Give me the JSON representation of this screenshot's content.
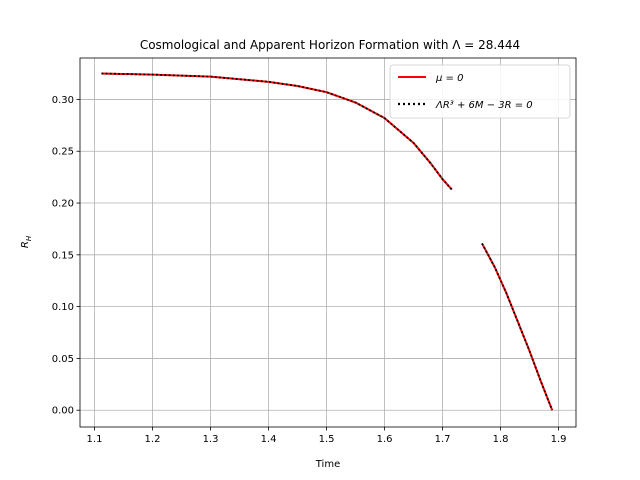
{
  "chart_data": {
    "type": "line",
    "title": "Cosmological and Apparent Horizon Formation with Λ = 28.444",
    "xlabel": "Time",
    "ylabel": "R_H",
    "xlim": [
      1.075,
      1.93
    ],
    "ylim": [
      -0.0162,
      0.34
    ],
    "xticks": [
      "1.1",
      "1.2",
      "1.3",
      "1.4",
      "1.5",
      "1.6",
      "1.7",
      "1.8",
      "1.9"
    ],
    "yticks": [
      "0.00",
      "0.05",
      "0.10",
      "0.15",
      "0.20",
      "0.25",
      "0.30"
    ],
    "grid": true,
    "legend_position": "top-right",
    "series": [
      {
        "name": "μ = 0",
        "color": "#ff0000",
        "style": "solid",
        "segments": [
          {
            "x": [
              1.112,
              1.2,
              1.3,
              1.4,
              1.45,
              1.5,
              1.55,
              1.6,
              1.65,
              1.68,
              1.7,
              1.716
            ],
            "y": [
              0.325,
              0.324,
              0.322,
              0.317,
              0.313,
              0.307,
              0.297,
              0.282,
              0.258,
              0.238,
              0.223,
              0.213
            ]
          },
          {
            "x": [
              1.768,
              1.79,
              1.81,
              1.83,
              1.85,
              1.87,
              1.889
            ],
            "y": [
              0.161,
              0.138,
              0.113,
              0.085,
              0.057,
              0.027,
              0.0
            ]
          }
        ]
      },
      {
        "name": "ΛR³ + 6M − 3R = 0",
        "color": "#000000",
        "style": "dotted",
        "segments": [
          {
            "x": [
              1.112,
              1.2,
              1.3,
              1.4,
              1.45,
              1.5,
              1.55,
              1.6,
              1.65,
              1.68,
              1.7,
              1.716
            ],
            "y": [
              0.325,
              0.324,
              0.322,
              0.317,
              0.313,
              0.307,
              0.297,
              0.282,
              0.258,
              0.238,
              0.223,
              0.213
            ]
          },
          {
            "x": [
              1.768,
              1.79,
              1.81,
              1.83,
              1.85,
              1.87,
              1.889
            ],
            "y": [
              0.161,
              0.138,
              0.113,
              0.085,
              0.057,
              0.027,
              0.0
            ]
          }
        ]
      }
    ]
  }
}
